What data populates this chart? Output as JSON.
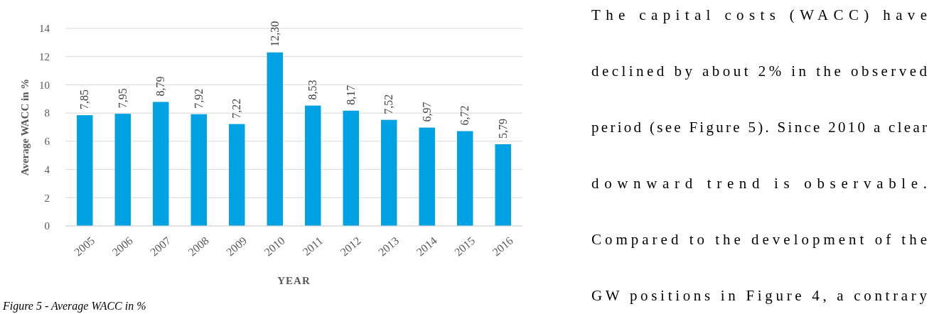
{
  "chart_data": {
    "type": "bar",
    "xlabel": "YEAR",
    "ylabel": "Average WACC in %",
    "categories": [
      "2005",
      "2006",
      "2007",
      "2008",
      "2009",
      "2010",
      "2011",
      "2012",
      "2013",
      "2014",
      "2015",
      "2016"
    ],
    "values": [
      7.85,
      7.95,
      8.79,
      7.92,
      7.22,
      12.3,
      8.53,
      8.17,
      7.52,
      6.97,
      6.72,
      5.79
    ],
    "value_labels": [
      "7,85",
      "7,95",
      "8,79",
      "7,92",
      "7,22",
      "12,30",
      "8,53",
      "8,17",
      "7,52",
      "6,97",
      "6,72",
      "5,79"
    ],
    "color": "#00a2e3",
    "ylim": [
      0,
      14
    ],
    "yticks": [
      0,
      2,
      4,
      6,
      8,
      10,
      12,
      14
    ],
    "grid": "y",
    "annotations": [
      "Figure 5 - Average WACC in %",
      "The capital costs (WACC) have",
      "declined by about 2% in the observed",
      "period (see Figure 5). Since 2010 a clear",
      "downward trend is observable.",
      "Compared to the development of the",
      "GW positions in Figure 4, a contrary"
    ]
  }
}
